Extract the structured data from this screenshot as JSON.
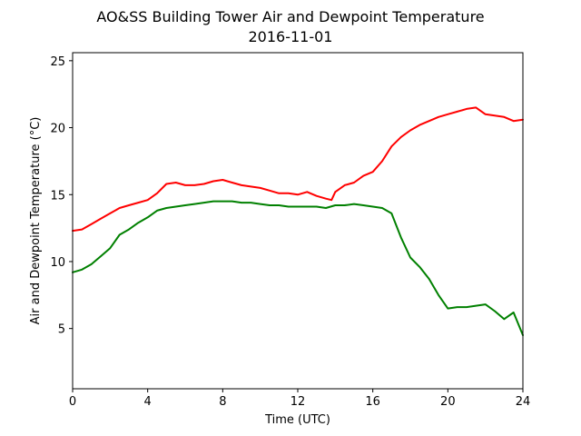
{
  "chart_data": {
    "type": "line",
    "title": "AO&SS Building Tower Air and Dewpoint Temperature",
    "subtitle": "2016-11-01",
    "xlabel": "Time (UTC)",
    "ylabel": "Air and Dewpoint Temperature (°C)",
    "xlim": [
      0,
      24
    ],
    "ylim": [
      0.5,
      25.6
    ],
    "xticks": [
      0,
      4,
      8,
      12,
      16,
      20,
      24
    ],
    "yticks": [
      5,
      10,
      15,
      20,
      25
    ],
    "grid": false,
    "legend": "none",
    "series": [
      {
        "color": "#ff0000",
        "x": [
          0,
          0.5,
          1,
          1.5,
          2,
          2.5,
          3,
          3.5,
          4,
          4.5,
          5,
          5.5,
          6,
          6.5,
          7,
          7.5,
          8,
          8.5,
          9,
          9.5,
          10,
          10.5,
          11,
          11.5,
          12,
          12.5,
          13,
          13.5,
          13.8,
          14,
          14.5,
          15,
          15.5,
          16,
          16.5,
          17,
          17.5,
          18,
          18.5,
          19,
          19.5,
          20,
          20.5,
          21,
          21.5,
          22,
          22.5,
          23,
          23.5,
          24
        ],
        "y": [
          12.3,
          12.4,
          12.8,
          13.2,
          13.6,
          14.0,
          14.2,
          14.4,
          14.6,
          15.1,
          15.8,
          15.9,
          15.7,
          15.7,
          15.8,
          16.0,
          16.1,
          15.9,
          15.7,
          15.6,
          15.5,
          15.3,
          15.1,
          15.1,
          15.0,
          15.2,
          14.9,
          14.7,
          14.6,
          15.2,
          15.7,
          15.9,
          16.4,
          16.7,
          17.5,
          18.6,
          19.3,
          19.8,
          20.2,
          20.5,
          20.8,
          21.0,
          21.2,
          21.4,
          21.5,
          21.0,
          20.9,
          20.8,
          20.5,
          20.6
        ]
      },
      {
        "color": "#008000",
        "x": [
          0,
          0.5,
          1,
          1.5,
          2,
          2.5,
          3,
          3.5,
          4,
          4.5,
          5,
          5.5,
          6,
          6.5,
          7,
          7.5,
          8,
          8.5,
          9,
          9.5,
          10,
          10.5,
          11,
          11.5,
          12,
          12.5,
          13,
          13.5,
          14,
          14.5,
          15,
          15.5,
          16,
          16.5,
          17,
          17.5,
          18,
          18.5,
          19,
          19.5,
          20,
          20.5,
          21,
          21.5,
          22,
          22.5,
          23,
          23.5,
          24
        ],
        "y": [
          9.2,
          9.4,
          9.8,
          10.4,
          11.0,
          12.0,
          12.4,
          12.9,
          13.3,
          13.8,
          14.0,
          14.1,
          14.2,
          14.3,
          14.4,
          14.5,
          14.5,
          14.5,
          14.4,
          14.4,
          14.3,
          14.2,
          14.2,
          14.1,
          14.1,
          14.1,
          14.1,
          14.0,
          14.2,
          14.2,
          14.3,
          14.2,
          14.1,
          14.0,
          13.6,
          11.8,
          10.3,
          9.6,
          8.7,
          7.5,
          6.5,
          6.6,
          6.6,
          6.7,
          6.8,
          6.3,
          5.7,
          6.2,
          4.5
        ]
      }
    ]
  }
}
